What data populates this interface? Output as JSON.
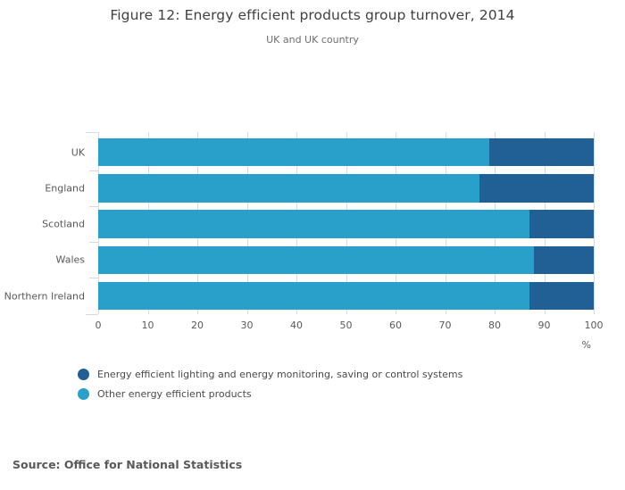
{
  "title": "Figure 12: Energy efficient products group turnover, 2014",
  "subtitle": "UK and UK country",
  "source": "Source: Office for National Statistics",
  "colors": {
    "dark_blue": "#206095",
    "light_blue": "#29a0ca",
    "grid": "#d6dbe0",
    "axis_text": "#595959"
  },
  "chart_data": {
    "type": "bar",
    "orientation": "horizontal",
    "stacked": true,
    "title": "Figure 12: Energy efficient products group turnover, 2014",
    "subtitle": "UK and UK country",
    "categories": [
      "UK",
      "England",
      "Scotland",
      "Wales",
      "Northern Ireland"
    ],
    "series": [
      {
        "name": "Energy efficient lighting and energy monitoring, saving or control systems",
        "color": "#206095",
        "values": [
          21,
          23,
          13,
          12,
          13
        ]
      },
      {
        "name": "Other energy efficient products",
        "color": "#29a0ca",
        "values": [
          79,
          77,
          87,
          88,
          87
        ]
      }
    ],
    "stack_left_to_right": [
      "Other energy efficient products",
      "Energy efficient lighting and energy monitoring, saving or control systems"
    ],
    "x_ticks": [
      0,
      10,
      20,
      30,
      40,
      50,
      60,
      70,
      80,
      90,
      100
    ],
    "x_unit": "%",
    "xlim": [
      0,
      100
    ],
    "grid": true,
    "legend_position": "bottom-left"
  }
}
